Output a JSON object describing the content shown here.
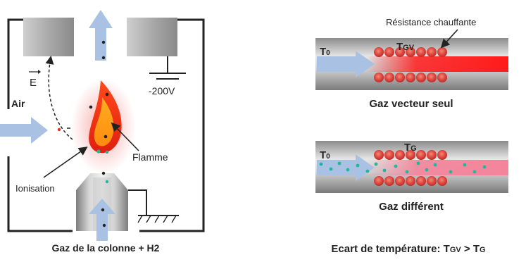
{
  "left_panel": {
    "air_label": "Air",
    "field_label": "E",
    "voltage_label": "-200V",
    "flame_label": "Flamme",
    "ionisation_label": "Ionisation",
    "caption": "Gaz de la colonne + H2"
  },
  "right_panel": {
    "top_tube": {
      "heater_label": "Résistance chauffante",
      "t0_label": "T",
      "t0_sub": "0",
      "temp_label": "T",
      "temp_sub": "GV",
      "caption": "Gaz vecteur seul"
    },
    "bottom_tube": {
      "t0_label": "T",
      "t0_sub": "0",
      "temp_label": "T",
      "temp_sub": "G",
      "caption": "Gaz différent"
    },
    "formula": {
      "prefix": "Ecart de température: ",
      "t1": "T",
      "t1_sub": "GV",
      "op": " > ",
      "t2": "T",
      "t2_sub": "G"
    }
  },
  "colors": {
    "frame": "#222222",
    "electrode": "#9a9a9a",
    "arrow": "#a9c1e2",
    "heater": "#e0443c",
    "hot_gas": "#ff1a1a",
    "mixed_gas": "#f4849a",
    "particle": "#22b79a"
  }
}
